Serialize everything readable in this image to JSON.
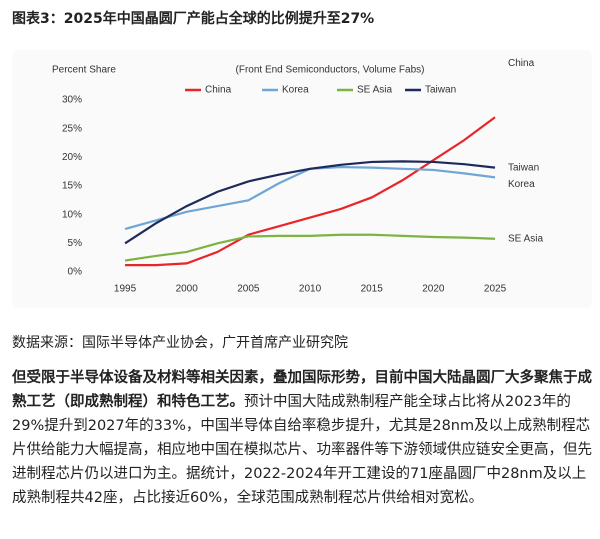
{
  "title": "图表3：2025年中国晶圆厂产能占全球的比例提升至27%",
  "chart_data": {
    "type": "line",
    "subtitle": "(Front End Semiconductors, Volume Fabs)",
    "y_label": "Percent Share",
    "x": [
      1995,
      1997.5,
      2000,
      2002.5,
      2005,
      2007.5,
      2010,
      2012.5,
      2015,
      2017.5,
      2020,
      2022.5,
      2025
    ],
    "series": [
      {
        "name": "China",
        "color": "#e8262a",
        "values": [
          1.2,
          1.2,
          1.5,
          3.5,
          6.5,
          8,
          9.5,
          11,
          13,
          16,
          19.5,
          23,
          27
        ]
      },
      {
        "name": "Korea",
        "color": "#6fa6d6",
        "values": [
          7.5,
          9,
          10.5,
          11.5,
          12.5,
          15.5,
          18,
          18.3,
          18.2,
          18,
          17.8,
          17.2,
          16.5
        ]
      },
      {
        "name": "SE Asia",
        "color": "#7cb342",
        "values": [
          2,
          2.8,
          3.5,
          5,
          6.2,
          6.3,
          6.3,
          6.5,
          6.5,
          6.3,
          6.1,
          6,
          5.8
        ]
      },
      {
        "name": "Taiwan",
        "color": "#1f2a5c",
        "values": [
          5,
          8.5,
          11.5,
          14,
          15.8,
          17,
          18,
          18.7,
          19.2,
          19.3,
          19.2,
          18.8,
          18.2
        ]
      }
    ],
    "xlim": [
      1992.5,
      2027
    ],
    "xticks": [
      1995,
      2000,
      2005,
      2010,
      2015,
      2020,
      2025
    ],
    "ylim": [
      0,
      30
    ],
    "yticks": [
      {
        "value": 0,
        "label": "0%"
      },
      {
        "value": 5,
        "label": "5%"
      },
      {
        "value": 10,
        "label": "10%"
      },
      {
        "value": 15,
        "label": "15%"
      },
      {
        "value": 20,
        "label": "20%"
      },
      {
        "value": 25,
        "label": "25%"
      },
      {
        "value": 30,
        "label": "30%"
      }
    ],
    "grid": false
  },
  "source": "数据来源：国际半导体产业协会，广开首席产业研究院",
  "paragraph": {
    "bold": "但受限于半导体设备及材料等相关因素，叠加国际形势，目前中国大陆晶圆厂大多聚焦于成熟工艺（即成熟制程）和特色工艺。",
    "text": "预计中国大陆成熟制程产能全球占比将从2023年的29%提升到2027年的33%，中国半导体自给率稳步提升，尤其是28nm及以上成熟制程芯片供给能力大幅提高，相应地中国在模拟芯片、功率器件等下游领域供应链安全更高，但先进制程芯片仍以进口为主。据统计，2022-2024年开工建设的71座晶圆厂中28nm及以上成熟制程共42座，占比接近60%，全球范围成熟制程芯片供给相对宽松。"
  }
}
